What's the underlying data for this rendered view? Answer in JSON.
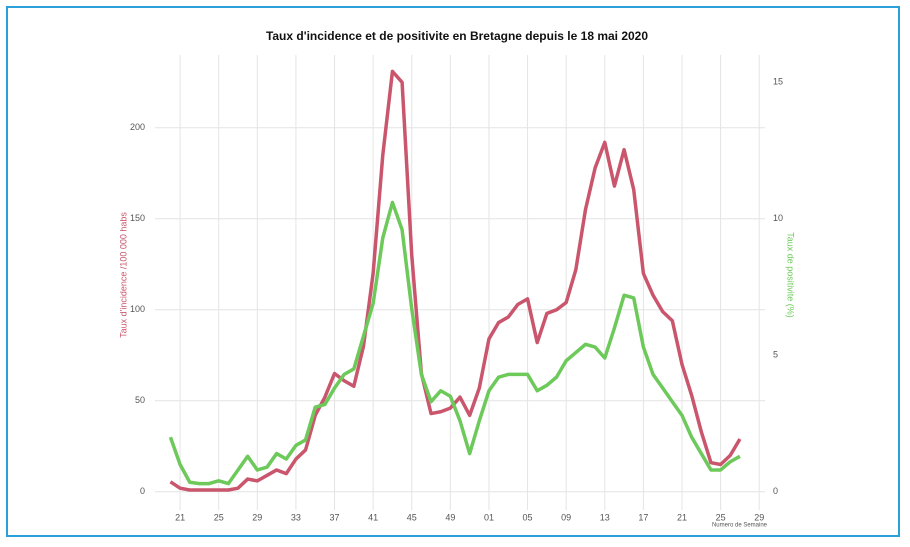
{
  "chart_data": {
    "type": "line",
    "title": "Taux d'incidence et de positivite en Bretagne depuis le 18 mai 2020",
    "xlabel": "Numero de Semaine",
    "ylabel": "Taux d'incidence /100 000 habs",
    "y2label": "Taux de positivite (%)",
    "x": [
      20,
      21,
      22,
      23,
      24,
      25,
      26,
      27,
      28,
      29,
      30,
      31,
      32,
      33,
      34,
      35,
      36,
      37,
      38,
      39,
      40,
      41,
      42,
      43,
      44,
      45,
      46,
      47,
      48,
      49,
      50,
      51,
      52,
      53,
      54,
      55,
      56,
      57,
      58,
      59,
      60,
      61,
      62,
      63,
      64,
      65,
      66,
      67,
      68,
      69,
      70,
      71,
      72,
      73,
      74,
      75,
      76,
      77,
      78,
      79
    ],
    "series": [
      {
        "name": "Taux d'incidence",
        "color": "#c9566c",
        "values": [
          5.5,
          2,
          1,
          1,
          1,
          1,
          1,
          2,
          7,
          6,
          9,
          12,
          10,
          18,
          23,
          42,
          52,
          65,
          61,
          58,
          80,
          120,
          185,
          231,
          225,
          130,
          65,
          43,
          44,
          46,
          52,
          42,
          57,
          84,
          93,
          96,
          103,
          106,
          82,
          98,
          100,
          104,
          122,
          155,
          178,
          192,
          168,
          188,
          166,
          120,
          108,
          99,
          94,
          70,
          53,
          33,
          16,
          15,
          20,
          29
        ]
      },
      {
        "name": "Taux de positivite",
        "color": "#6cc95a",
        "axis": "y2",
        "values": [
          2.0,
          1.0,
          0.35,
          0.3,
          0.3,
          0.4,
          0.3,
          0.8,
          1.3,
          0.8,
          0.9,
          1.4,
          1.2,
          1.7,
          1.9,
          3.1,
          3.2,
          3.8,
          4.3,
          4.5,
          5.7,
          6.9,
          9.3,
          10.6,
          9.6,
          6.7,
          4.3,
          3.3,
          3.7,
          3.5,
          2.6,
          1.4,
          2.6,
          3.7,
          4.2,
          4.3,
          4.3,
          4.3,
          3.7,
          3.9,
          4.2,
          4.8,
          5.1,
          5.4,
          5.3,
          4.9,
          6.0,
          7.2,
          7.1,
          5.3,
          4.3,
          3.8,
          3.3,
          2.8,
          2.0,
          1.4,
          0.8,
          0.8,
          1.1,
          1.3
        ]
      }
    ],
    "xlim": [
      18.4,
      81.6
    ],
    "xticks": [
      21,
      25,
      29,
      33,
      37,
      41,
      45,
      49,
      {
        "value": 53,
        "label": "01"
      },
      {
        "value": 57,
        "label": "05"
      },
      {
        "value": 61,
        "label": "09"
      },
      {
        "value": 65,
        "label": "13"
      },
      {
        "value": 69,
        "label": "17"
      },
      {
        "value": 73,
        "label": "21"
      },
      {
        "value": 77,
        "label": "25"
      },
      {
        "value": 81,
        "label": "29"
      }
    ],
    "ylim": [
      -10,
      240
    ],
    "yticks": [
      0,
      50,
      100,
      150,
      200
    ],
    "y2lim": [
      -0.667,
      16
    ],
    "y2ticks": [
      0,
      5,
      10,
      15
    ],
    "grid": true
  }
}
